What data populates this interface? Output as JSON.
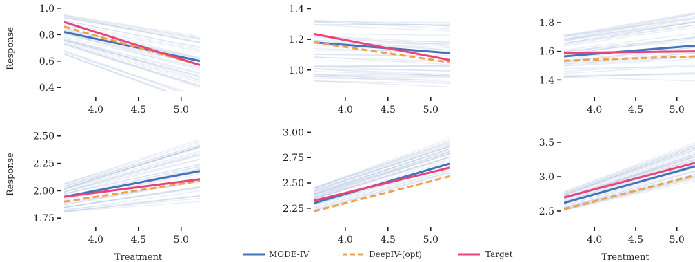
{
  "figure": {
    "xlabel": "Treatment",
    "ylabel": "Response",
    "legend": [
      {
        "name": "MODE-IV",
        "color": "#4472b8",
        "dash": "solid"
      },
      {
        "name": "DeepIV-(opt)",
        "color": "#f0a04b",
        "dash": "dashed"
      },
      {
        "name": "Target",
        "color": "#e8447a",
        "dash": "solid"
      }
    ],
    "bg_line_color": "#9db3d6"
  },
  "chart_data": [
    {
      "type": "line",
      "row": 0,
      "col": 0,
      "xlim": [
        3.63,
        5.22
      ],
      "ylim": [
        0.37,
        1.02
      ],
      "xticks": [
        "4.0",
        "4.5",
        "5.0"
      ],
      "yticks": [
        "0.4",
        "0.6",
        "0.8",
        "1.0"
      ],
      "ylabel": "Response",
      "xlabel": "",
      "x": [
        3.63,
        5.22
      ],
      "series": [
        {
          "name": "MODE-IV",
          "values": [
            0.82,
            0.6
          ]
        },
        {
          "name": "DeepIV-(opt)",
          "values": [
            0.86,
            0.57
          ]
        },
        {
          "name": "Target",
          "values": [
            0.895,
            0.57
          ]
        }
      ],
      "background": {
        "count": 40,
        "start": [
          0.65,
          0.97
        ],
        "end": [
          0.3,
          0.8
        ]
      }
    },
    {
      "type": "line",
      "row": 0,
      "col": 1,
      "xlim": [
        3.63,
        5.22
      ],
      "ylim": [
        0.86,
        1.42
      ],
      "xticks": [
        "4.0",
        "4.5",
        "5.0"
      ],
      "yticks": [
        "1.0",
        "1.2",
        "1.4"
      ],
      "ylabel": "",
      "xlabel": "",
      "x": [
        3.63,
        5.22
      ],
      "series": [
        {
          "name": "MODE-IV",
          "values": [
            1.18,
            1.11
          ]
        },
        {
          "name": "DeepIV-(opt)",
          "values": [
            1.18,
            1.05
          ]
        },
        {
          "name": "Target",
          "values": [
            1.235,
            1.065
          ]
        }
      ],
      "background": {
        "count": 40,
        "start": [
          0.92,
          1.34
        ],
        "end": [
          0.9,
          1.31
        ]
      }
    },
    {
      "type": "line",
      "row": 0,
      "col": 2,
      "xlim": [
        3.63,
        5.22
      ],
      "ylim": [
        1.32,
        1.92
      ],
      "xticks": [
        "4.0",
        "4.5",
        "5.0"
      ],
      "yticks": [
        "1.4",
        "1.6",
        "1.8"
      ],
      "ylabel": "",
      "xlabel": "",
      "x": [
        3.63,
        5.22
      ],
      "series": [
        {
          "name": "MODE-IV",
          "values": [
            1.565,
            1.64
          ]
        },
        {
          "name": "DeepIV-(opt)",
          "values": [
            1.535,
            1.565
          ]
        },
        {
          "name": "Target",
          "values": [
            1.59,
            1.6
          ]
        }
      ],
      "background": {
        "count": 40,
        "start": [
          1.38,
          1.72
        ],
        "end": [
          1.37,
          1.88
        ]
      }
    },
    {
      "type": "line",
      "row": 1,
      "col": 0,
      "xlim": [
        3.63,
        5.22
      ],
      "ylim": [
        1.72,
        2.58
      ],
      "xticks": [
        "4.0",
        "4.5",
        "5.0"
      ],
      "yticks": [
        "1.75",
        "2.00",
        "2.25",
        "2.50"
      ],
      "ylabel": "Response",
      "xlabel": "Treatment",
      "x": [
        3.63,
        5.22
      ],
      "series": [
        {
          "name": "MODE-IV",
          "values": [
            1.945,
            2.18
          ]
        },
        {
          "name": "DeepIV-(opt)",
          "values": [
            1.9,
            2.09
          ]
        },
        {
          "name": "Target",
          "values": [
            1.945,
            2.105
          ]
        }
      ],
      "background": {
        "count": 40,
        "start": [
          1.8,
          2.07
        ],
        "end": [
          1.92,
          2.48
        ]
      }
    },
    {
      "type": "line",
      "row": 1,
      "col": 1,
      "xlim": [
        3.63,
        5.22
      ],
      "ylim": [
        2.12,
        3.05
      ],
      "xticks": [
        "4.0",
        "4.5",
        "5.0"
      ],
      "yticks": [
        "2.25",
        "2.50",
        "2.75",
        "3.00"
      ],
      "ylabel": "",
      "xlabel": "",
      "x": [
        3.63,
        5.22
      ],
      "series": [
        {
          "name": "MODE-IV",
          "values": [
            2.3,
            2.69
          ]
        },
        {
          "name": "DeepIV-(opt)",
          "values": [
            2.22,
            2.565
          ]
        },
        {
          "name": "Target",
          "values": [
            2.325,
            2.65
          ]
        }
      ],
      "background": {
        "count": 40,
        "start": [
          2.2,
          2.46
        ],
        "end": [
          2.55,
          2.93
        ]
      }
    },
    {
      "type": "line",
      "row": 1,
      "col": 2,
      "xlim": [
        3.63,
        5.22
      ],
      "ylim": [
        2.35,
        3.72
      ],
      "xticks": [
        "4.0",
        "4.5",
        "5.0"
      ],
      "yticks": [
        "2.5",
        "3.0",
        "3.5"
      ],
      "ylabel": "",
      "xlabel": "Treatment",
      "x": [
        3.63,
        5.22
      ],
      "series": [
        {
          "name": "MODE-IV",
          "values": [
            2.62,
            3.15
          ]
        },
        {
          "name": "DeepIV-(opt)",
          "values": [
            2.53,
            3.02
          ]
        },
        {
          "name": "Target",
          "values": [
            2.7,
            3.2
          ]
        }
      ],
      "background": {
        "count": 40,
        "start": [
          2.5,
          2.78
        ],
        "end": [
          2.95,
          3.5
        ]
      }
    }
  ]
}
